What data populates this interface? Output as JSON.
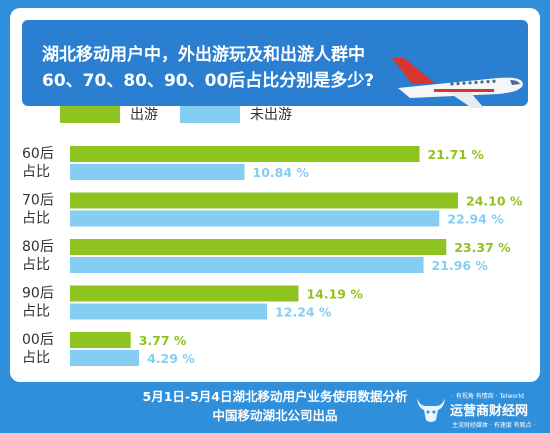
{
  "title": "湖北移动用户中，外出游玩及和出游人群中60、70、80、90、00后占比分别是多少?",
  "chart_data": {
    "type": "bar",
    "orientation": "horizontal",
    "categories": [
      "60后\n占比",
      "70后\n占比",
      "80后\n占比",
      "90后\n占比",
      "00后\n占比"
    ],
    "series": [
      {
        "name": "出游",
        "color": "#8fc31f",
        "values": [
          21.71,
          24.1,
          23.37,
          14.19,
          3.77
        ],
        "labels": [
          "21.71 %",
          "24.10 %",
          "23.37 %",
          "14.19 %",
          "3.77 %"
        ]
      },
      {
        "name": "未出游",
        "color": "#86cdf3",
        "values": [
          10.84,
          22.94,
          21.96,
          12.24,
          4.29
        ],
        "labels": [
          "10.84 %",
          "22.94 %",
          "21.96 %",
          "12.24 %",
          "4.29 %"
        ]
      }
    ],
    "xlim": [
      0,
      24.1
    ],
    "legend_position": "top-left"
  },
  "footer": {
    "line1": "5月1日-5月4日湖北移动用户业务使用数据分析",
    "line2": "中国移动湖北公司出品"
  },
  "watermark": {
    "tagline_top": "· 有视角 有情商 · Telworld",
    "brand": "运营商财经网",
    "tagline_bottom": "主流财经媒体 · 有速度 有观点 ·"
  }
}
